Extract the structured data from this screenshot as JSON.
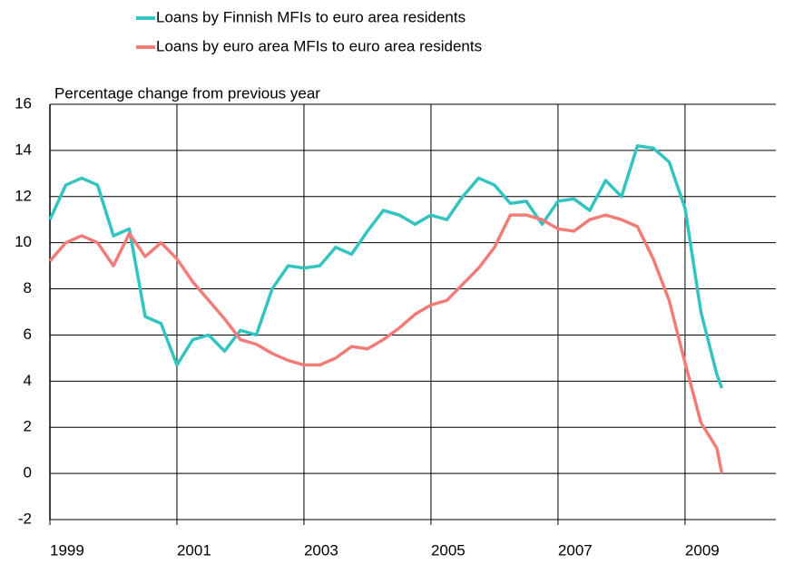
{
  "chart_data": {
    "type": "line",
    "y_axis_label": "Percentage change from previous year",
    "x": [
      1999.0,
      1999.25,
      1999.5,
      1999.75,
      2000.0,
      2000.25,
      2000.5,
      2000.75,
      2001.0,
      2001.25,
      2001.5,
      2001.75,
      2002.0,
      2002.25,
      2002.5,
      2002.75,
      2003.0,
      2003.25,
      2003.5,
      2003.75,
      2004.0,
      2004.25,
      2004.5,
      2004.75,
      2005.0,
      2005.25,
      2005.5,
      2005.75,
      2006.0,
      2006.25,
      2006.5,
      2006.75,
      2007.0,
      2007.25,
      2007.5,
      2007.75,
      2008.0,
      2008.25,
      2008.5,
      2008.75,
      2009.0,
      2009.25,
      2009.5,
      2009.58
    ],
    "series": [
      {
        "name": "Loans by Finnish MFIs to euro area residents",
        "color": "#33c4bf",
        "values": [
          11.0,
          12.5,
          12.8,
          12.5,
          10.3,
          10.6,
          6.8,
          6.5,
          4.7,
          5.8,
          6.0,
          5.3,
          6.2,
          6.0,
          8.0,
          9.0,
          8.9,
          9.0,
          9.8,
          9.5,
          10.5,
          11.4,
          11.2,
          10.8,
          11.2,
          11.0,
          12.0,
          12.8,
          12.5,
          11.7,
          11.8,
          10.8,
          11.8,
          11.9,
          11.4,
          12.7,
          12.0,
          14.2,
          14.1,
          13.5,
          11.5,
          7.0,
          4.3,
          3.7
        ]
      },
      {
        "name": "Loans by euro area MFIs to euro area residents",
        "color": "#f27c78",
        "values": [
          9.2,
          10.0,
          10.3,
          10.0,
          9.0,
          10.4,
          9.4,
          10.0,
          9.3,
          8.3,
          7.5,
          6.7,
          5.8,
          5.6,
          5.2,
          4.9,
          4.7,
          4.7,
          5.0,
          5.5,
          5.4,
          5.8,
          6.3,
          6.9,
          7.3,
          7.5,
          8.2,
          8.9,
          9.8,
          11.2,
          11.2,
          11.0,
          10.6,
          10.5,
          11.0,
          11.2,
          11.0,
          10.7,
          9.3,
          7.5,
          4.8,
          2.2,
          1.1,
          0.0
        ]
      }
    ],
    "xlim": [
      1999,
      2010.43
    ],
    "xticks": [
      1999,
      2001,
      2003,
      2005,
      2007,
      2009
    ],
    "ylim": [
      -2,
      16
    ],
    "yticks": [
      -2,
      0,
      2,
      4,
      6,
      8,
      10,
      12,
      14,
      16
    ],
    "grid": true
  }
}
